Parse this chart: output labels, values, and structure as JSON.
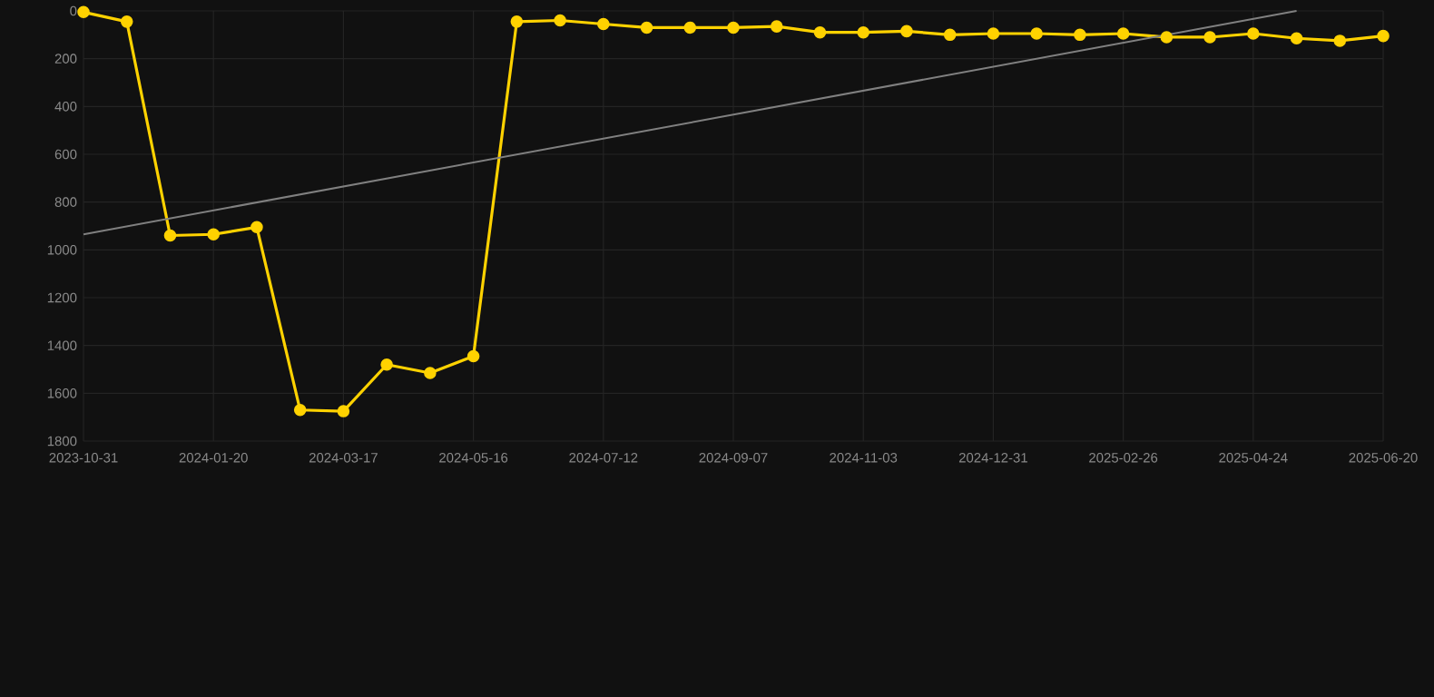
{
  "chart_data": {
    "type": "line",
    "categories": [
      "2023-10-31",
      null,
      null,
      "2024-01-20",
      null,
      null,
      "2024-03-17",
      null,
      null,
      "2024-05-16",
      null,
      null,
      "2024-07-12",
      null,
      null,
      "2024-09-07",
      null,
      null,
      "2024-11-03",
      null,
      null,
      "2024-12-31",
      null,
      null,
      "2025-02-26",
      null,
      null,
      "2025-04-24",
      null,
      null,
      "2025-06-20"
    ],
    "series": [
      {
        "color": "#ffd200",
        "values": [
          5,
          45,
          940,
          935,
          905,
          1670,
          1675,
          1480,
          1515,
          1445,
          45,
          40,
          55,
          70,
          70,
          70,
          65,
          90,
          90,
          85,
          100,
          95,
          95,
          100,
          95,
          110,
          110,
          95,
          115,
          125,
          105
        ]
      },
      {
        "type": "line",
        "color": "#808080",
        "marker": "none",
        "values": [
          935,
          null,
          null,
          null,
          null,
          null,
          null,
          null,
          null,
          null,
          null,
          null,
          null,
          null,
          null,
          null,
          null,
          null,
          null,
          null,
          null,
          null,
          null,
          null,
          null,
          null,
          null,
          null,
          0,
          null,
          null
        ]
      }
    ],
    "ylim": [
      1800,
      0
    ],
    "yticks": [
      0,
      200,
      400,
      600,
      800,
      1000,
      1200,
      1400,
      1600,
      1800
    ],
    "grid": true,
    "marker": "circle",
    "line_style": "solid"
  }
}
